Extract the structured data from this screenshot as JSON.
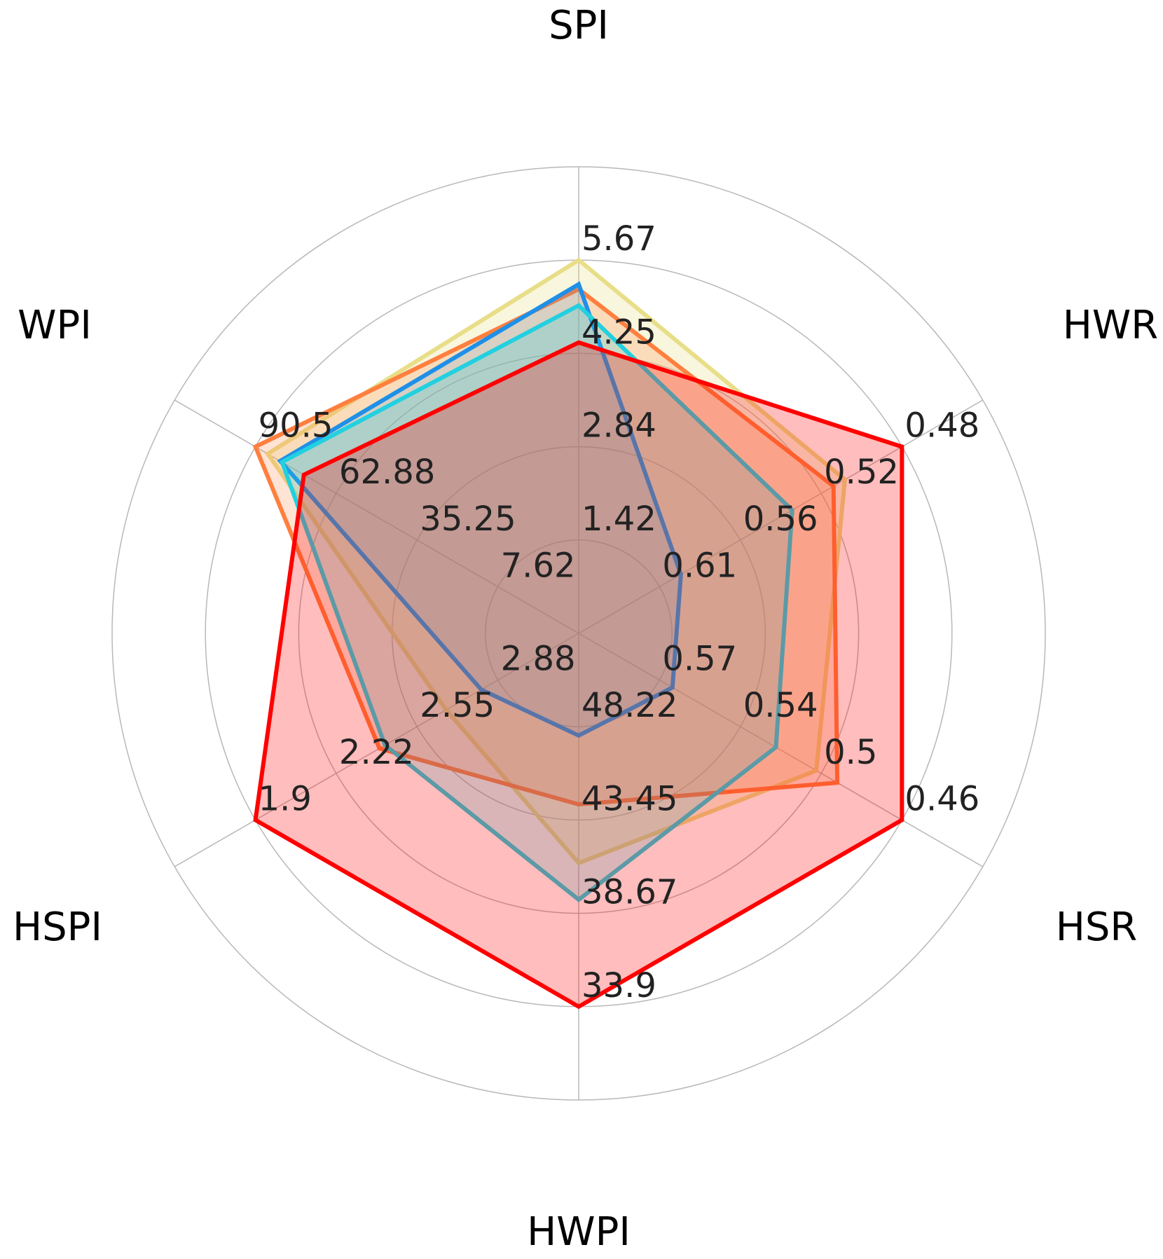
{
  "chart_data": {
    "type": "radar",
    "title": "",
    "axes": [
      "SPI",
      "HWR",
      "HSR",
      "HWPI",
      "HSPI",
      "WPI"
    ],
    "tick_labels": {
      "SPI": [
        "1.42",
        "2.84",
        "4.25",
        "5.67"
      ],
      "HWR": [
        "0.61",
        "0.56",
        "0.52",
        "0.48"
      ],
      "HSR": [
        "0.57",
        "0.54",
        "0.5",
        "0.46"
      ],
      "HWPI": [
        "48.22",
        "43.45",
        "38.67",
        "33.9"
      ],
      "HSPI": [
        "2.88",
        "2.55",
        "2.22",
        "1.9"
      ],
      "WPI": [
        "7.62",
        "35.25",
        "62.88",
        "90.5"
      ]
    },
    "axis_min": {
      "SPI": 0,
      "HWR": 0.65,
      "HSR": 0.61,
      "HWPI": 53.0,
      "HSPI": 3.21,
      "WPI": -20.0
    },
    "axis_max": {
      "SPI": 5.67,
      "HWR": 0.48,
      "HSR": 0.46,
      "HWPI": 33.9,
      "HSPI": 1.9,
      "WPI": 90.5
    },
    "grid": true,
    "series": [
      {
        "color": "#E8DE88",
        "fill_opacity": 0.28,
        "values": {
          "SPI": 5.67,
          "HWR": 0.52,
          "HSR": 0.513,
          "HWPI": 43.7,
          "HSPI": 2.93,
          "WPI": 84.9
        }
      },
      {
        "color": "#FF7F3F",
        "fill_opacity": 0.22,
        "values": {
          "SPI": 5.08,
          "HWR": 0.528,
          "HSR": 0.5,
          "HWPI": 47.7,
          "HSPI": 2.57,
          "WPI": 90.5
        }
      },
      {
        "color": "#1E90E8",
        "fill_opacity": 0.15,
        "values": {
          "SPI": 5.18,
          "HWR": 0.635,
          "HSR": 0.602,
          "HWPI": 52.4,
          "HSPI": 3.12,
          "WPI": 79.2
        }
      },
      {
        "color": "#22D0E0",
        "fill_opacity": 0.22,
        "values": {
          "SPI": 4.75,
          "HWR": 0.557,
          "HSR": 0.538,
          "HWPI": 41.2,
          "HSPI": 2.6,
          "WPI": 78.4
        }
      },
      {
        "color": "#FF0000",
        "fill_opacity": 0.26,
        "values": {
          "SPI": 4.0,
          "HWR": 0.48,
          "HSR": 0.46,
          "HWPI": 33.9,
          "HSPI": 1.9,
          "WPI": 68.4
        }
      }
    ]
  }
}
